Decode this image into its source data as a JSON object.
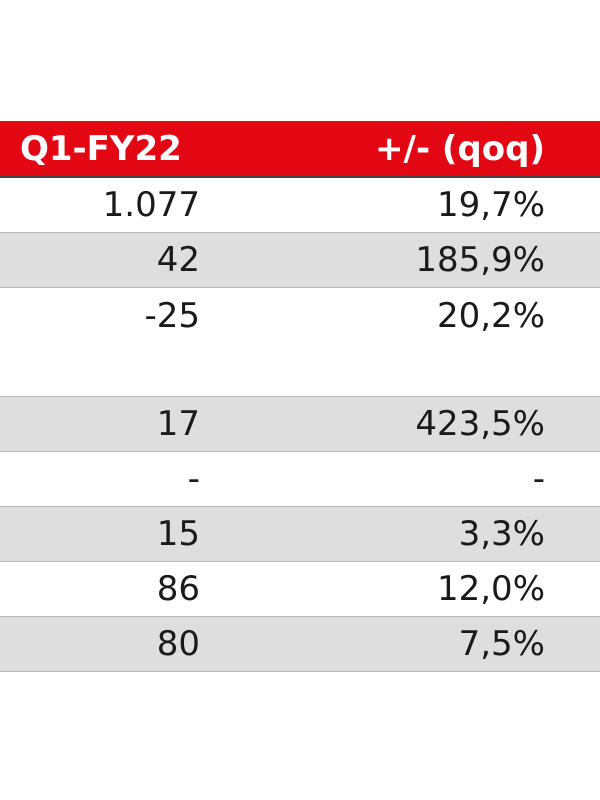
{
  "header": {
    "col1": "Q1-FY22",
    "col2": "+/- (qoq)"
  },
  "rows": [
    {
      "value": "1.077",
      "change": "19,7%"
    },
    {
      "value": "42",
      "change": "185,9%"
    },
    {
      "value": "-25",
      "change": "20,2%"
    },
    {
      "value": "17",
      "change": "423,5%"
    },
    {
      "value": "-",
      "change": "-"
    },
    {
      "value": "15",
      "change": "3,3%"
    },
    {
      "value": "86",
      "change": "12,0%"
    },
    {
      "value": "80",
      "change": "7,5%"
    }
  ],
  "colors": {
    "header_bg": "#e30613",
    "shaded_row": "#dedede"
  }
}
